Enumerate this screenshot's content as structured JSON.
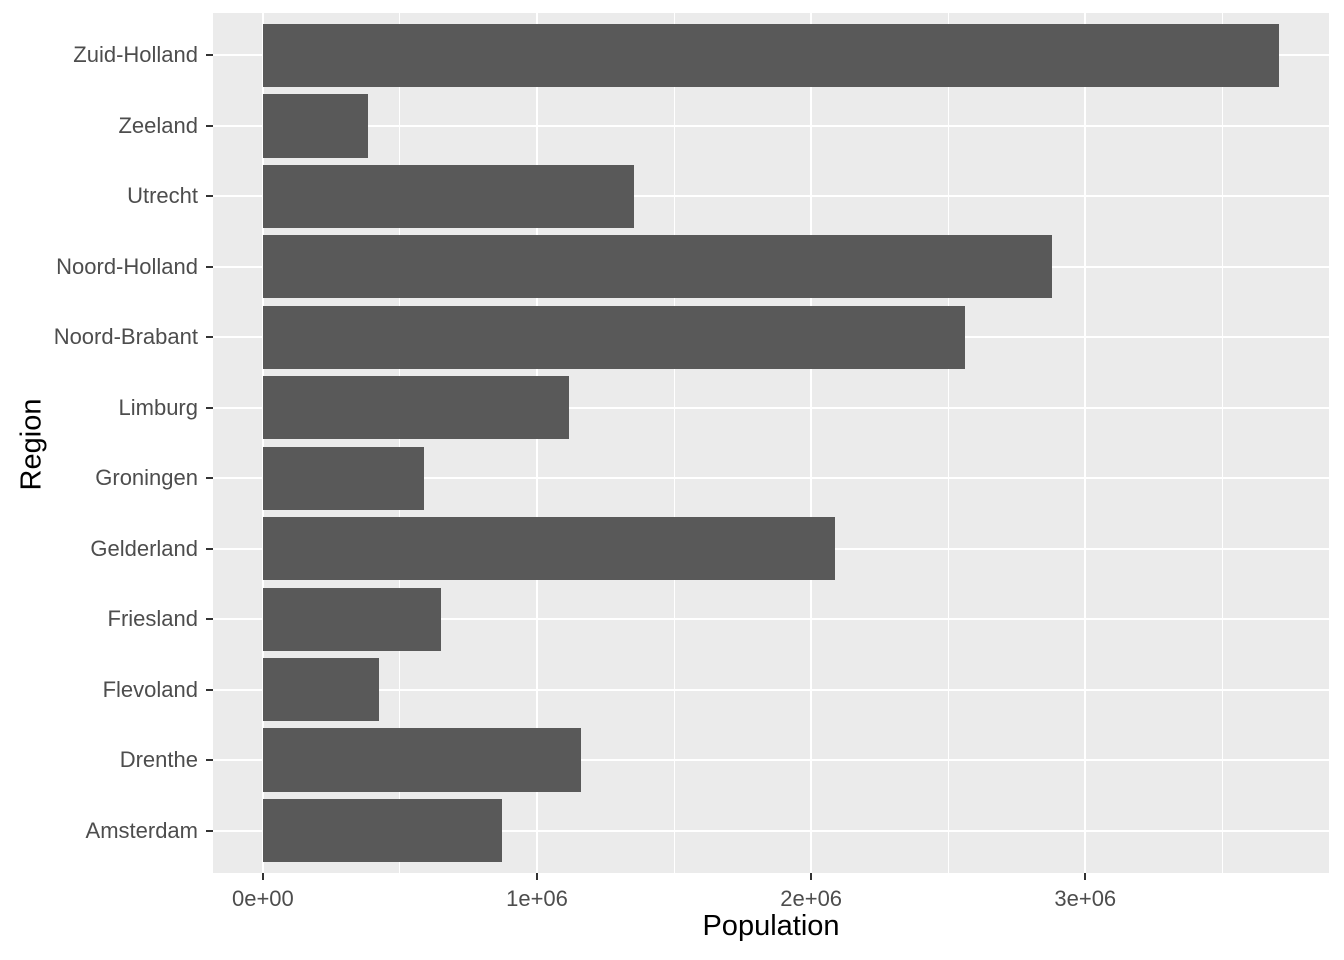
{
  "chart_data": {
    "type": "bar",
    "orientation": "horizontal",
    "title": "",
    "xlabel": "Population",
    "ylabel": "Region",
    "categories_top_to_bottom": [
      "Zuid-Holland",
      "Zeeland",
      "Utrecht",
      "Noord-Holland",
      "Noord-Brabant",
      "Limburg",
      "Groningen",
      "Gelderland",
      "Friesland",
      "Flevoland",
      "Drenthe",
      "Amsterdam"
    ],
    "values": [
      3708000,
      383000,
      1354000,
      2879000,
      2563000,
      1117000,
      586000,
      2086000,
      650000,
      423000,
      1162000,
      873000
    ],
    "x_ticks": [
      {
        "value": 0,
        "label": "0e+00"
      },
      {
        "value": 1000000,
        "label": "1e+06"
      },
      {
        "value": 2000000,
        "label": "2e+06"
      },
      {
        "value": 3000000,
        "label": "3e+06"
      }
    ],
    "x_minor_ticks": [
      500000,
      1500000,
      2500000,
      3500000
    ],
    "xlim": [
      -182000,
      3889000
    ],
    "grid": "white major and minor gridlines on gray panel, majors at category centers",
    "legend": "none",
    "colors": {
      "bar_fill": "#595959",
      "panel_background": "#EBEBEB",
      "gridline": "#FFFFFF",
      "axis_text": "#4D4D4D",
      "axis_title": "#000000",
      "tick_mark": "#333333",
      "figure_background": "#FFFFFF"
    }
  }
}
